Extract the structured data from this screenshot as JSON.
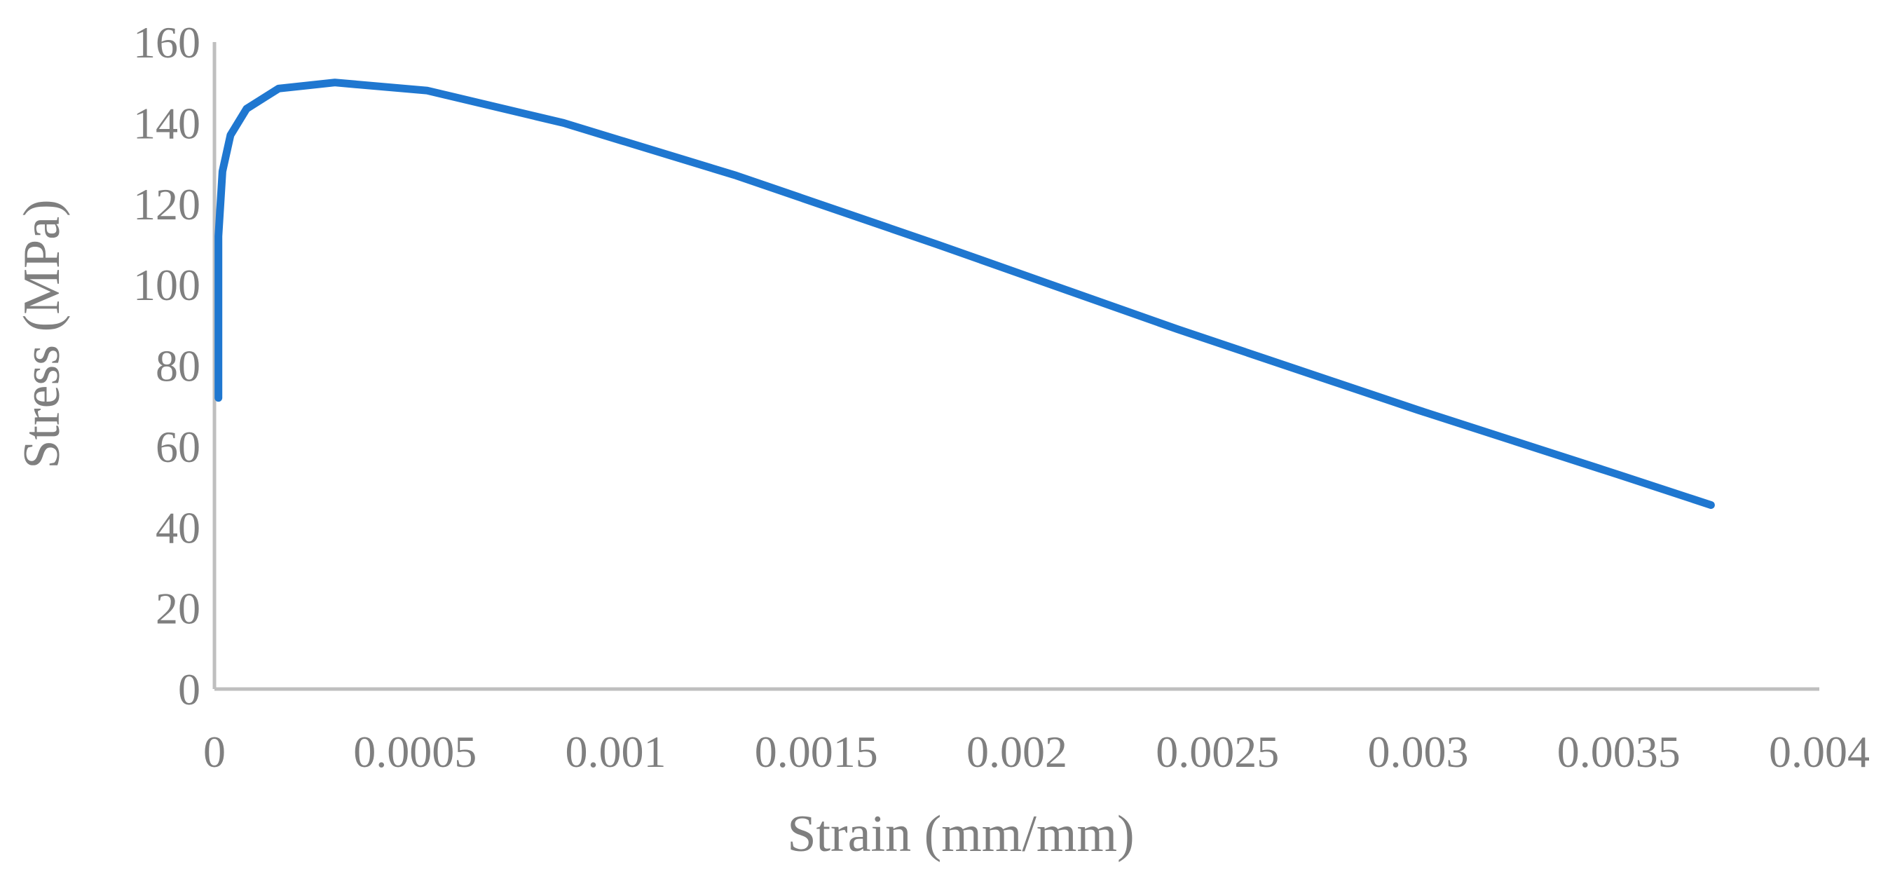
{
  "colors": {
    "background": "#ffffff",
    "axis": "#bfbfbf",
    "text": "#7f7f7f",
    "series": "#1f77d0"
  },
  "chart_data": {
    "type": "line",
    "title": "",
    "xlabel": "Strain (mm/mm)",
    "ylabel": "Stress (MPa)",
    "xlim": [
      0,
      0.004
    ],
    "ylim": [
      0,
      160
    ],
    "xticks": [
      0,
      0.0005,
      0.001,
      0.0015,
      0.002,
      0.0025,
      0.003,
      0.0035,
      0.004
    ],
    "xtick_labels": [
      "0",
      "0.0005",
      "0.001",
      "0.0015",
      "0.002",
      "0.0025",
      "0.003",
      "0.0035",
      "0.004"
    ],
    "yticks": [
      0,
      20,
      40,
      60,
      80,
      100,
      120,
      140,
      160
    ],
    "ytick_labels": [
      "0",
      "20",
      "40",
      "60",
      "80",
      "100",
      "120",
      "140",
      "160"
    ],
    "grid": false,
    "legend": "none",
    "series": [
      {
        "x": [
          1e-05,
          1e-05,
          1e-05,
          2e-05,
          4e-05,
          8e-05,
          0.00016,
          0.0003,
          0.00053,
          0.00087,
          0.0013,
          0.0018,
          0.0024,
          0.003,
          0.0035,
          0.00373
        ],
        "y": [
          72,
          95,
          112,
          128,
          137,
          143.5,
          148.5,
          150,
          148,
          140,
          127,
          110,
          89,
          69,
          53,
          45.5
        ]
      }
    ]
  }
}
